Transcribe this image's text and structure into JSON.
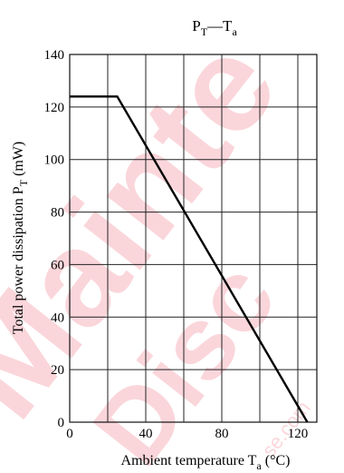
{
  "chart_data": {
    "type": "line",
    "title": {
      "main": "P",
      "main_sub": "T",
      "dash": "—",
      "second": "T",
      "second_sub": "a"
    },
    "xlabel": {
      "text": "Ambient temperature  T",
      "sub": "a",
      "unit": "  (°C)"
    },
    "ylabel": {
      "text": "Total power dissipation  P",
      "sub": "T",
      "unit": "  (mW)"
    },
    "xlim": [
      0,
      130
    ],
    "ylim": [
      0,
      140
    ],
    "x_ticks": [
      0,
      40,
      80,
      120
    ],
    "y_ticks": [
      0,
      20,
      40,
      60,
      80,
      100,
      120,
      140
    ],
    "x_grid": [
      0,
      20,
      40,
      60,
      80,
      100,
      120,
      130
    ],
    "y_grid": [
      0,
      20,
      40,
      60,
      80,
      100,
      120,
      140
    ],
    "grid": true,
    "series": [
      {
        "x": [
          0,
          25,
          125
        ],
        "y": [
          124,
          124,
          0
        ],
        "color": "#000000"
      }
    ]
  },
  "watermark": {
    "large": "Mainte",
    "medium": "Disc",
    "small": "se.com",
    "color": "#e8243c"
  }
}
